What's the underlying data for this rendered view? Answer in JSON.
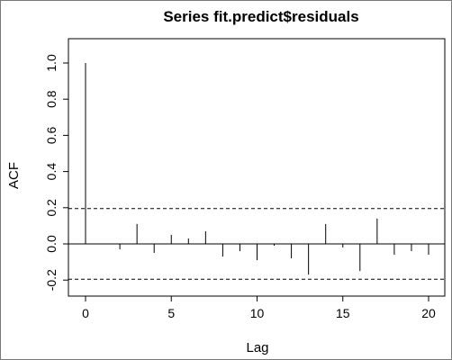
{
  "chart_data": {
    "type": "acf",
    "title": "Series  fit.predict$residuals",
    "xlabel": "Lag",
    "ylabel": "ACF",
    "xlim": [
      0,
      20
    ],
    "ylim": [
      -0.2,
      1.0
    ],
    "x_ticks": [
      0,
      5,
      10,
      15,
      20
    ],
    "y_ticks": [
      -0.2,
      0.0,
      0.2,
      0.4,
      0.6,
      0.8,
      1.0
    ],
    "x_tick_labels": [
      "0",
      "5",
      "10",
      "15",
      "20"
    ],
    "y_tick_labels": [
      "-0.2",
      "0.0",
      "0.2",
      "0.4",
      "0.6",
      "0.8",
      "1.0"
    ],
    "confidence_band": [
      -0.195,
      0.195
    ],
    "lags": [
      0,
      1,
      2,
      3,
      4,
      5,
      6,
      7,
      8,
      9,
      10,
      11,
      12,
      13,
      14,
      15,
      16,
      17,
      18,
      19,
      20
    ],
    "acf": [
      1.0,
      0.0,
      -0.03,
      0.11,
      -0.05,
      0.05,
      0.03,
      0.07,
      -0.07,
      -0.04,
      -0.09,
      -0.01,
      -0.08,
      -0.17,
      0.11,
      -0.02,
      -0.15,
      0.14,
      -0.06,
      -0.04,
      -0.06
    ],
    "grid": false,
    "legend": "none"
  }
}
